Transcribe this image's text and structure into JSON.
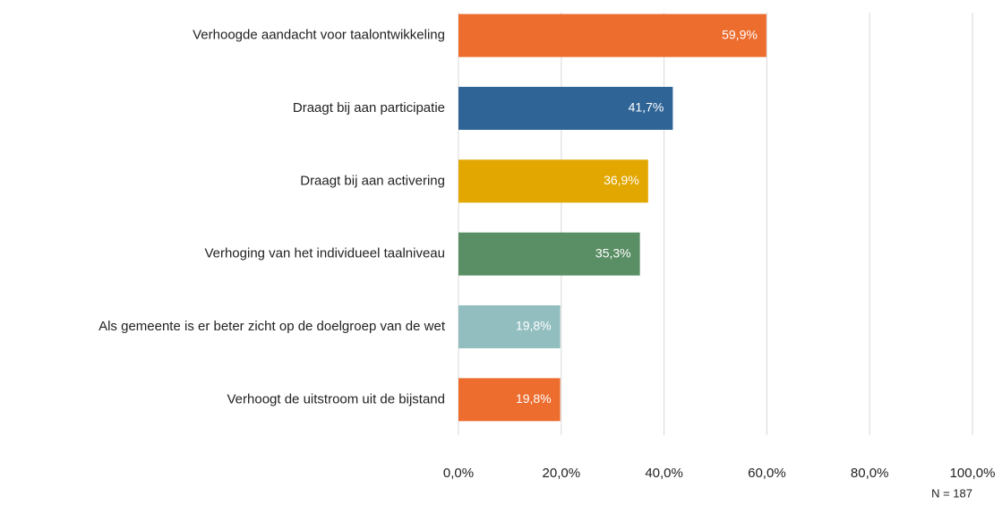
{
  "chart_data": {
    "type": "bar",
    "orientation": "horizontal",
    "categories": [
      "Verhoogde aandacht voor taalontwikkeling",
      "Draagt bij aan participatie",
      "Draagt bij aan activering",
      "Verhoging van het individueel taalniveau",
      "Als gemeente is er beter zicht op de doelgroep van de wet",
      "Verhoogt de uitstroom uit de bijstand"
    ],
    "values": [
      59.9,
      41.7,
      36.9,
      35.3,
      19.8,
      19.8
    ],
    "value_labels": [
      "59,9%",
      "41,7%",
      "36,9%",
      "35,3%",
      "19,8%",
      "19,8%"
    ],
    "colors": [
      "#ed6d2f",
      "#2f6496",
      "#e2a700",
      "#5a8e64",
      "#93bec0",
      "#ed6d2f"
    ],
    "xlim": [
      0,
      100
    ],
    "xticks": [
      {
        "value": 0,
        "label": "0,0%"
      },
      {
        "value": 20,
        "label": "20,0%"
      },
      {
        "value": 40,
        "label": "40,0%"
      },
      {
        "value": 60,
        "label": "60,0%"
      },
      {
        "value": 80,
        "label": "80,0%"
      },
      {
        "value": 100,
        "label": "100,0%"
      }
    ],
    "grid": true,
    "annotation": "N = 187"
  }
}
